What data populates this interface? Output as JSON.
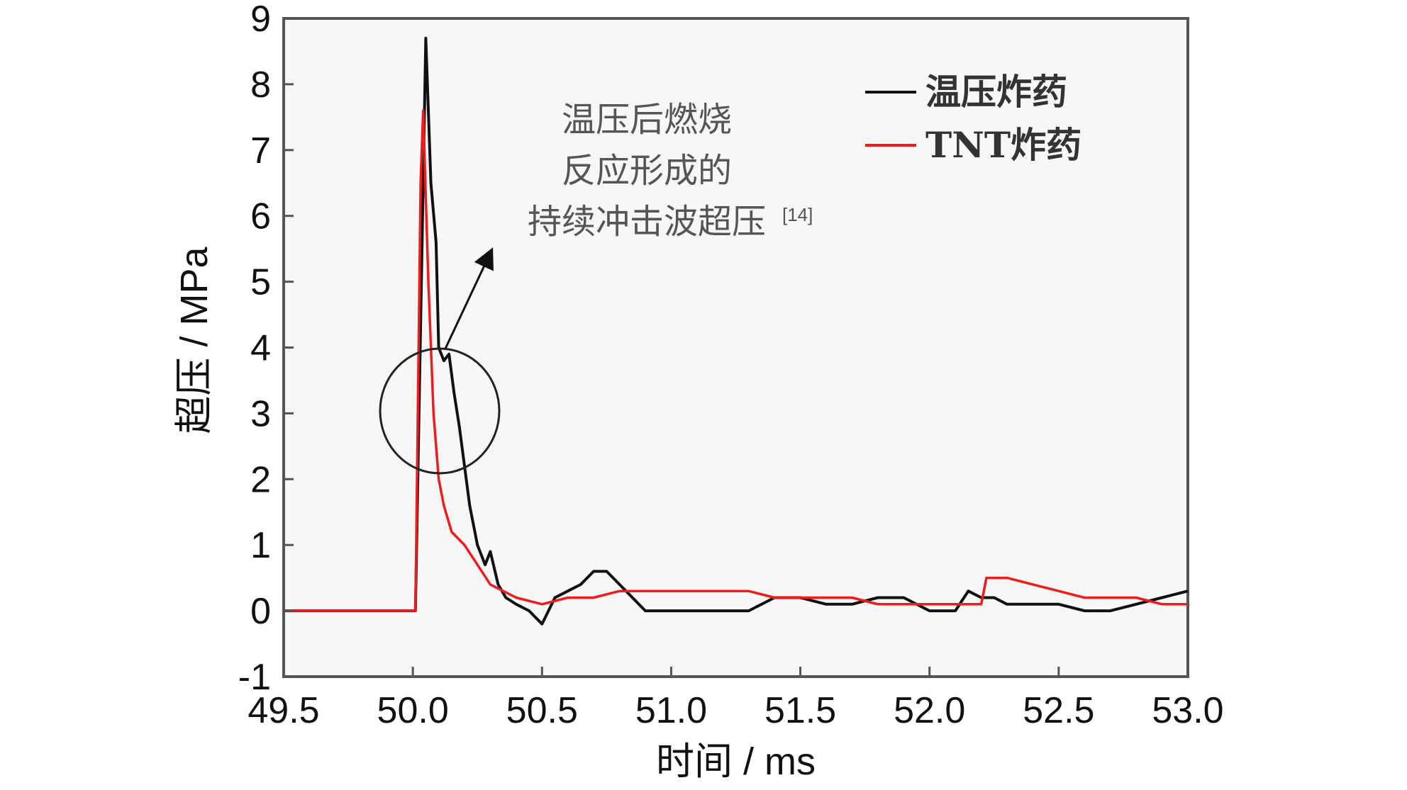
{
  "chart_data": {
    "type": "line",
    "xlabel": "时间 / ms",
    "ylabel": "超压 / MPa",
    "xlim": [
      49.5,
      53.0
    ],
    "ylim": [
      -1,
      9
    ],
    "x_ticks": [
      "49.5",
      "50.0",
      "50.5",
      "51.0",
      "51.5",
      "52.0",
      "52.5",
      "53.0"
    ],
    "y_ticks": [
      "-1",
      "0",
      "1",
      "2",
      "3",
      "4",
      "5",
      "6",
      "7",
      "8",
      "9"
    ],
    "grid": false,
    "legend_position": "top-right",
    "series": [
      {
        "name": "温压炸药",
        "color": "#111111",
        "x": [
          49.5,
          50.0,
          50.01,
          50.04,
          50.05,
          50.07,
          50.09,
          50.1,
          50.12,
          50.14,
          50.16,
          50.18,
          50.2,
          50.22,
          50.25,
          50.28,
          50.3,
          50.33,
          50.36,
          50.4,
          50.45,
          50.5,
          50.55,
          50.6,
          50.65,
          50.7,
          50.75,
          50.8,
          50.9,
          51.0,
          51.1,
          51.2,
          51.3,
          51.4,
          51.5,
          51.6,
          51.7,
          51.8,
          51.9,
          52.0,
          52.1,
          52.15,
          52.2,
          52.25,
          52.3,
          52.4,
          52.5,
          52.6,
          52.7,
          52.8,
          52.9,
          53.0
        ],
        "y": [
          0,
          0,
          0,
          6.5,
          8.7,
          6.5,
          5.6,
          4.0,
          3.8,
          3.9,
          3.3,
          2.8,
          2.2,
          1.6,
          1.0,
          0.7,
          0.9,
          0.4,
          0.2,
          0.1,
          0.0,
          -0.2,
          0.2,
          0.3,
          0.4,
          0.6,
          0.6,
          0.4,
          0.0,
          0.0,
          0.0,
          0.0,
          0.0,
          0.2,
          0.2,
          0.1,
          0.1,
          0.2,
          0.2,
          0.0,
          0.0,
          0.3,
          0.2,
          0.2,
          0.1,
          0.1,
          0.1,
          0.0,
          0.0,
          0.1,
          0.2,
          0.3
        ]
      },
      {
        "name": "TNT炸药",
        "color": "#ee1c1c",
        "x": [
          49.5,
          50.0,
          50.01,
          50.03,
          50.04,
          50.06,
          50.08,
          50.1,
          50.12,
          50.15,
          50.2,
          50.25,
          50.3,
          50.35,
          50.4,
          50.5,
          50.6,
          50.7,
          50.8,
          50.9,
          51.0,
          51.1,
          51.2,
          51.3,
          51.4,
          51.5,
          51.6,
          51.7,
          51.8,
          51.9,
          52.0,
          52.1,
          52.2,
          52.22,
          52.25,
          52.3,
          52.4,
          52.5,
          52.6,
          52.7,
          52.8,
          52.9,
          53.0
        ],
        "y": [
          0,
          0,
          0,
          6.5,
          7.6,
          5.0,
          3.0,
          2.0,
          1.6,
          1.2,
          1.0,
          0.7,
          0.4,
          0.3,
          0.2,
          0.1,
          0.2,
          0.2,
          0.3,
          0.3,
          0.3,
          0.3,
          0.3,
          0.3,
          0.2,
          0.2,
          0.2,
          0.2,
          0.1,
          0.1,
          0.1,
          0.1,
          0.1,
          0.5,
          0.5,
          0.5,
          0.4,
          0.3,
          0.2,
          0.2,
          0.2,
          0.1,
          0.1
        ]
      }
    ],
    "annotation": {
      "lines": [
        "温压后燃烧",
        "反应形成的",
        "持续冲击波超压"
      ],
      "ref": "[14]"
    }
  }
}
